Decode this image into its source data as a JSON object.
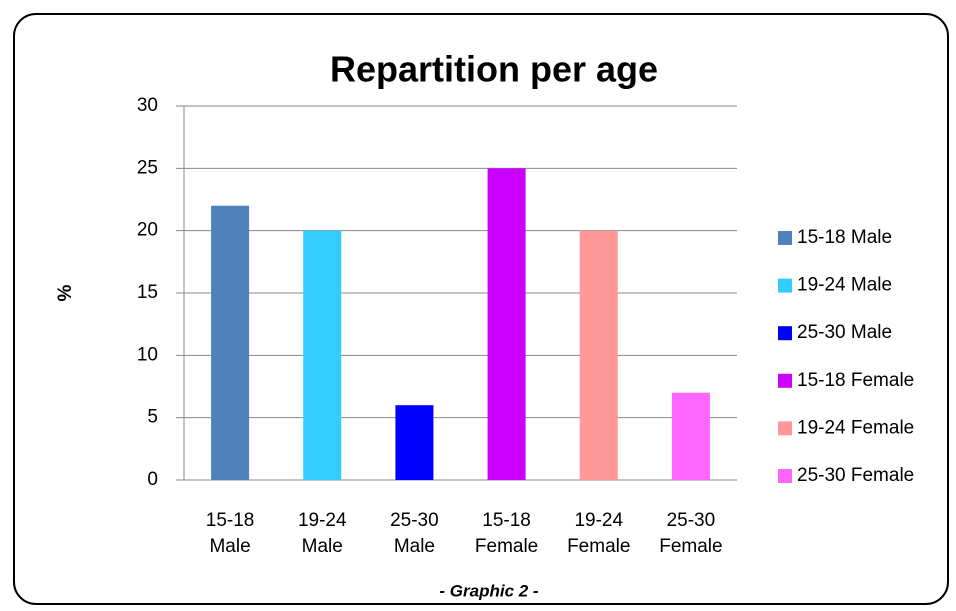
{
  "chart_data": {
    "type": "bar",
    "title": "Repartition per age",
    "y_label": "%",
    "caption": "- Graphic 2 -",
    "categories": [
      "15-18 Male",
      "19-24 Male",
      "25-30 Male",
      "15-18 Female",
      "19-24 Female",
      "25-30 Female"
    ],
    "values": [
      22,
      20,
      6,
      25,
      20,
      7
    ],
    "colors": [
      "#4f81bd",
      "#33ccff",
      "#0000ff",
      "#cc00ff",
      "#ff9999",
      "#ff66ff"
    ],
    "ylim": [
      0,
      30
    ],
    "yticks": [
      0,
      5,
      10,
      15,
      20,
      25,
      30
    ],
    "grid": true,
    "legend": "right"
  }
}
